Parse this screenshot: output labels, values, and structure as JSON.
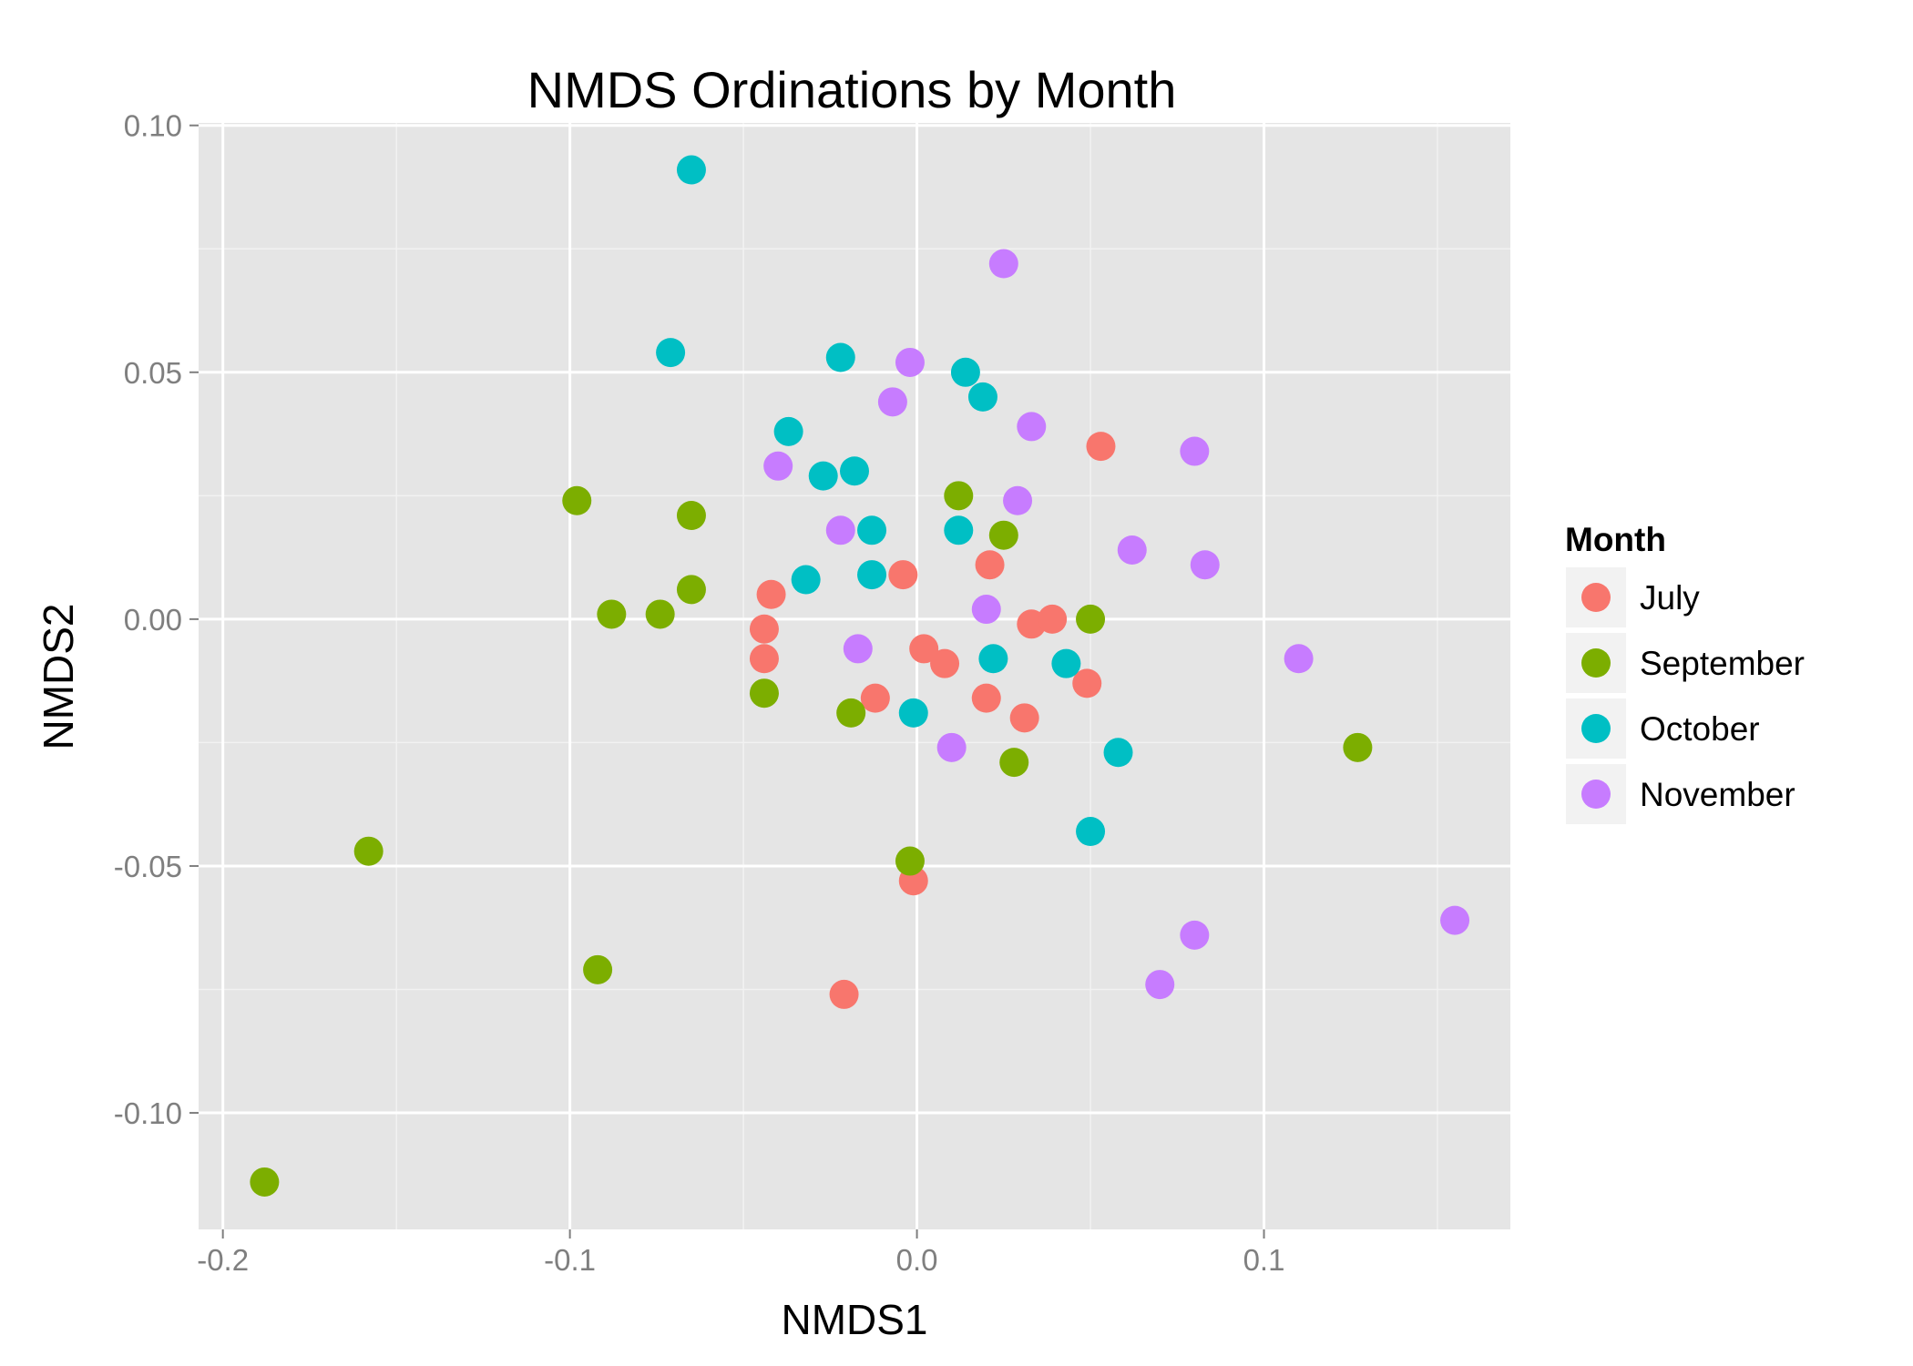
{
  "chart_data": {
    "type": "scatter",
    "title": "NMDS Ordinations by Month",
    "xlabel": "NMDS1",
    "ylabel": "NMDS2",
    "xlim": [
      -0.207,
      0.171
    ],
    "ylim": [
      -0.1236,
      0.1005
    ],
    "x_ticks": [
      -0.2,
      -0.1,
      0.0,
      0.1
    ],
    "x_tick_labels": [
      "-0.2",
      "-0.1",
      "0.0",
      "0.1"
    ],
    "y_ticks": [
      0.1,
      0.05,
      0.0,
      -0.05,
      -0.1
    ],
    "y_tick_labels": [
      "0.10",
      "0.05",
      "0.00",
      "-0.05",
      "-0.10"
    ],
    "grid": true,
    "legend": {
      "title": "Month",
      "position": "right"
    },
    "series": [
      {
        "name": "July",
        "color": "#F8766D",
        "points": [
          [
            -0.042,
            0.005
          ],
          [
            -0.044,
            -0.002
          ],
          [
            -0.044,
            -0.008
          ],
          [
            -0.004,
            0.009
          ],
          [
            0.021,
            0.011
          ],
          [
            0.053,
            0.035
          ],
          [
            0.002,
            -0.006
          ],
          [
            0.008,
            -0.009
          ],
          [
            -0.012,
            -0.016
          ],
          [
            0.02,
            -0.016
          ],
          [
            0.031,
            -0.02
          ],
          [
            0.033,
            -0.001
          ],
          [
            0.039,
            0.0
          ],
          [
            0.049,
            -0.013
          ],
          [
            -0.001,
            -0.053
          ],
          [
            -0.021,
            -0.076
          ]
        ]
      },
      {
        "name": "September",
        "color": "#7CAE00",
        "points": [
          [
            -0.098,
            0.024
          ],
          [
            -0.065,
            0.021
          ],
          [
            -0.065,
            0.006
          ],
          [
            -0.088,
            0.001
          ],
          [
            -0.074,
            0.001
          ],
          [
            -0.044,
            -0.015
          ],
          [
            -0.019,
            -0.019
          ],
          [
            0.012,
            0.025
          ],
          [
            0.025,
            0.017
          ],
          [
            0.05,
            0.0
          ],
          [
            0.028,
            -0.029
          ],
          [
            -0.002,
            -0.049
          ],
          [
            0.127,
            -0.026
          ],
          [
            -0.158,
            -0.047
          ],
          [
            -0.092,
            -0.071
          ],
          [
            -0.188,
            -0.114
          ]
        ]
      },
      {
        "name": "October",
        "color": "#00BFC4",
        "points": [
          [
            -0.065,
            0.091
          ],
          [
            -0.071,
            0.054
          ],
          [
            -0.022,
            0.053
          ],
          [
            0.014,
            0.05
          ],
          [
            0.019,
            0.045
          ],
          [
            -0.037,
            0.038
          ],
          [
            -0.027,
            0.029
          ],
          [
            -0.018,
            0.03
          ],
          [
            -0.013,
            0.018
          ],
          [
            0.012,
            0.018
          ],
          [
            -0.032,
            0.008
          ],
          [
            -0.013,
            0.009
          ],
          [
            0.022,
            -0.008
          ],
          [
            0.043,
            -0.009
          ],
          [
            -0.001,
            -0.019
          ],
          [
            0.058,
            -0.027
          ],
          [
            0.05,
            -0.043
          ]
        ]
      },
      {
        "name": "November",
        "color": "#C77CFF",
        "points": [
          [
            0.025,
            0.072
          ],
          [
            -0.002,
            0.052
          ],
          [
            -0.007,
            0.044
          ],
          [
            0.033,
            0.039
          ],
          [
            0.08,
            0.034
          ],
          [
            -0.04,
            0.031
          ],
          [
            0.029,
            0.024
          ],
          [
            -0.022,
            0.018
          ],
          [
            0.062,
            0.014
          ],
          [
            0.083,
            0.011
          ],
          [
            0.02,
            0.002
          ],
          [
            -0.017,
            -0.006
          ],
          [
            0.11,
            -0.008
          ],
          [
            0.01,
            -0.026
          ],
          [
            0.155,
            -0.061
          ],
          [
            0.08,
            -0.064
          ],
          [
            0.07,
            -0.074
          ]
        ]
      }
    ]
  }
}
